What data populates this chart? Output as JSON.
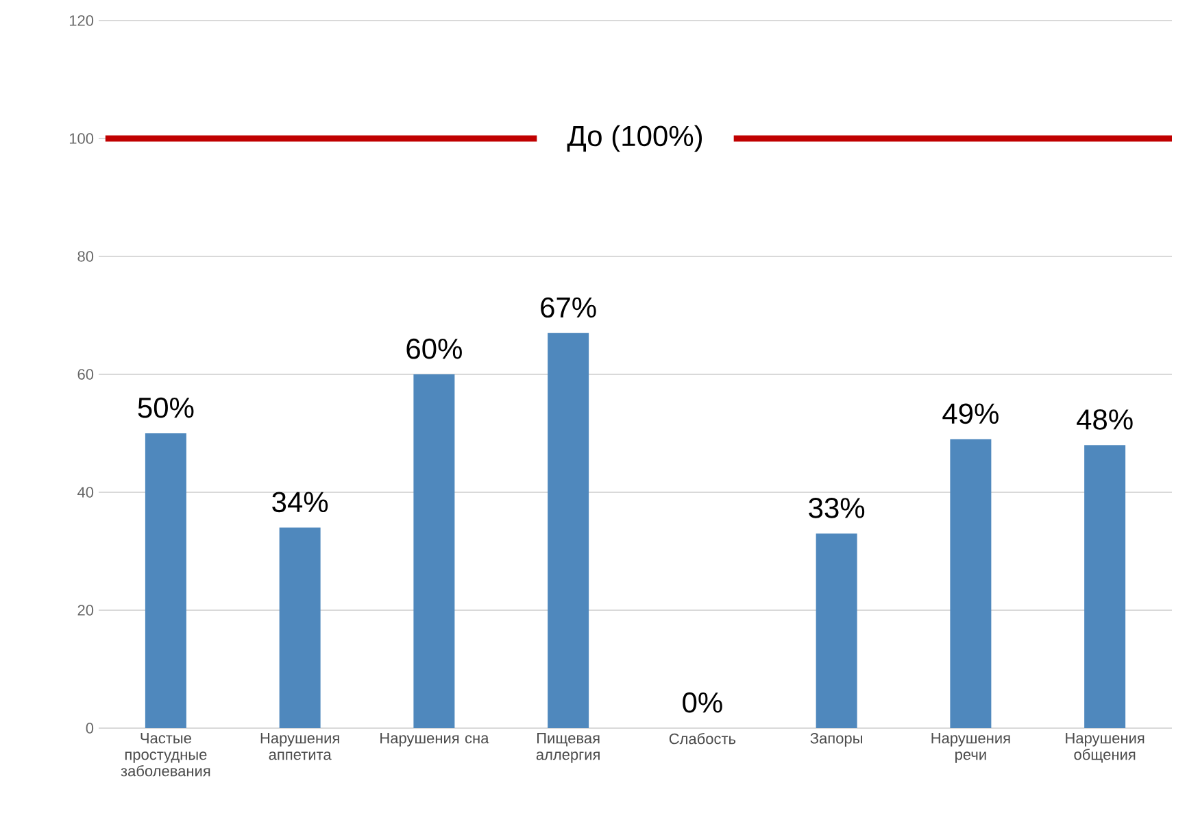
{
  "chart_data": {
    "type": "bar",
    "categories": [
      "Частые простудные заболевания",
      "Нарушения аппетита",
      "Нарушения сна",
      "Пищевая аллергия",
      "Слабость",
      "Запоры",
      "Нарушения речи",
      "Нарушения общения"
    ],
    "values": [
      50,
      34,
      60,
      67,
      0,
      33,
      49,
      48
    ],
    "value_labels": [
      "50%",
      "34%",
      "60%",
      "67%",
      "0%",
      "33%",
      "49%",
      "48%"
    ],
    "color": "#4f88bd",
    "ylim": [
      0,
      120
    ],
    "yticks": [
      0,
      20,
      40,
      60,
      80,
      100,
      120
    ],
    "grid": "y",
    "ref_lines": [
      {
        "axis": "y",
        "value": 100,
        "label": "До (100%)",
        "color": "#c00000"
      }
    ]
  }
}
